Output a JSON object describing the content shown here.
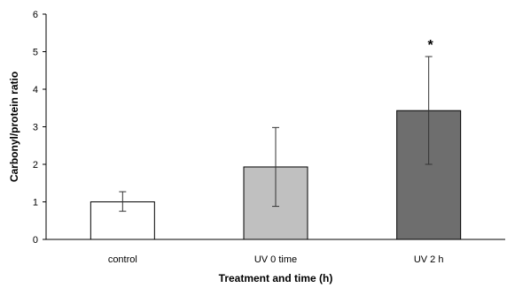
{
  "chart_data": {
    "type": "bar",
    "categories": [
      "control",
      "UV 0 time",
      "UV 2 h"
    ],
    "values": [
      1.0,
      1.93,
      3.43
    ],
    "error_low": [
      0.75,
      0.88,
      2.0
    ],
    "error_high": [
      1.27,
      2.98,
      4.87
    ],
    "annotations": [
      "",
      "",
      "*"
    ],
    "xlabel": "Treatment and time (h)",
    "ylabel": "Carbonyl/protein ratio",
    "ylim": [
      0,
      6
    ],
    "yticks": [
      "0",
      "1",
      "2",
      "3",
      "4",
      "5",
      "6"
    ],
    "grid": false,
    "legend": "none",
    "colors": [
      "#ffffff",
      "#c0c0c0",
      "#6e6e6e"
    ],
    "edge_color": "#000000"
  }
}
